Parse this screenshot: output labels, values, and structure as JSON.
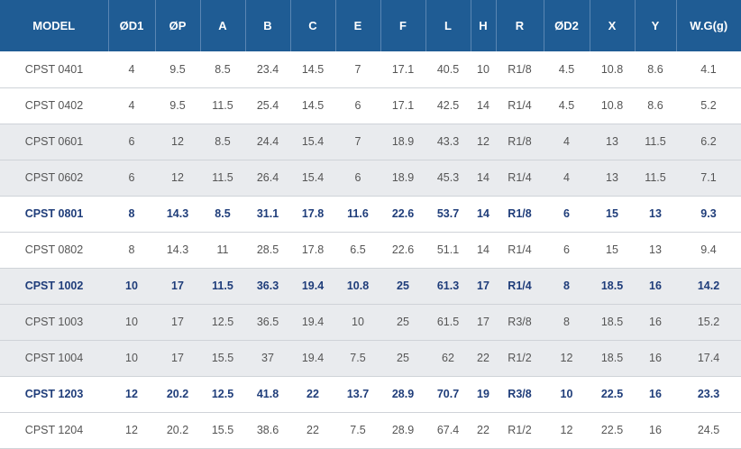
{
  "table": {
    "headers": [
      "MODEL",
      "ØD1",
      "ØP",
      "A",
      "B",
      "C",
      "E",
      "F",
      "L",
      "H",
      "R",
      "ØD2",
      "X",
      "Y",
      "W.G(g)"
    ],
    "rows": [
      {
        "highlight": false,
        "shaded": false,
        "cells": [
          "CPST 0401",
          "4",
          "9.5",
          "8.5",
          "23.4",
          "14.5",
          "7",
          "17.1",
          "40.5",
          "10",
          "R1/8",
          "4.5",
          "10.8",
          "8.6",
          "4.1"
        ]
      },
      {
        "highlight": false,
        "shaded": false,
        "cells": [
          "CPST 0402",
          "4",
          "9.5",
          "11.5",
          "25.4",
          "14.5",
          "6",
          "17.1",
          "42.5",
          "14",
          "R1/4",
          "4.5",
          "10.8",
          "8.6",
          "5.2"
        ]
      },
      {
        "highlight": false,
        "shaded": true,
        "cells": [
          "CPST 0601",
          "6",
          "12",
          "8.5",
          "24.4",
          "15.4",
          "7",
          "18.9",
          "43.3",
          "12",
          "R1/8",
          "4",
          "13",
          "11.5",
          "6.2"
        ]
      },
      {
        "highlight": false,
        "shaded": true,
        "cells": [
          "CPST 0602",
          "6",
          "12",
          "11.5",
          "26.4",
          "15.4",
          "6",
          "18.9",
          "45.3",
          "14",
          "R1/4",
          "4",
          "13",
          "11.5",
          "7.1"
        ]
      },
      {
        "highlight": true,
        "shaded": false,
        "cells": [
          "CPST 0801",
          "8",
          "14.3",
          "8.5",
          "31.1",
          "17.8",
          "11.6",
          "22.6",
          "53.7",
          "14",
          "R1/8",
          "6",
          "15",
          "13",
          "9.3"
        ]
      },
      {
        "highlight": false,
        "shaded": false,
        "cells": [
          "CPST 0802",
          "8",
          "14.3",
          "11",
          "28.5",
          "17.8",
          "6.5",
          "22.6",
          "51.1",
          "14",
          "R1/4",
          "6",
          "15",
          "13",
          "9.4"
        ]
      },
      {
        "highlight": true,
        "shaded": true,
        "cells": [
          "CPST 1002",
          "10",
          "17",
          "11.5",
          "36.3",
          "19.4",
          "10.8",
          "25",
          "61.3",
          "17",
          "R1/4",
          "8",
          "18.5",
          "16",
          "14.2"
        ]
      },
      {
        "highlight": false,
        "shaded": true,
        "cells": [
          "CPST 1003",
          "10",
          "17",
          "12.5",
          "36.5",
          "19.4",
          "10",
          "25",
          "61.5",
          "17",
          "R3/8",
          "8",
          "18.5",
          "16",
          "15.2"
        ]
      },
      {
        "highlight": false,
        "shaded": true,
        "cells": [
          "CPST 1004",
          "10",
          "17",
          "15.5",
          "37",
          "19.4",
          "7.5",
          "25",
          "62",
          "22",
          "R1/2",
          "12",
          "18.5",
          "16",
          "17.4"
        ]
      },
      {
        "highlight": true,
        "shaded": false,
        "cells": [
          "CPST 1203",
          "12",
          "20.2",
          "12.5",
          "41.8",
          "22",
          "13.7",
          "28.9",
          "70.7",
          "19",
          "R3/8",
          "10",
          "22.5",
          "16",
          "23.3"
        ]
      },
      {
        "highlight": false,
        "shaded": false,
        "cells": [
          "CPST 1204",
          "12",
          "20.2",
          "15.5",
          "38.6",
          "22",
          "7.5",
          "28.9",
          "67.4",
          "22",
          "R1/2",
          "12",
          "22.5",
          "16",
          "24.5"
        ]
      }
    ]
  },
  "colors": {
    "header_bg": "#1f5c94",
    "header_text": "#ffffff",
    "highlight_text": "#1f3d7a",
    "body_text": "#555555",
    "shaded_row_bg": "#e9ebee"
  }
}
